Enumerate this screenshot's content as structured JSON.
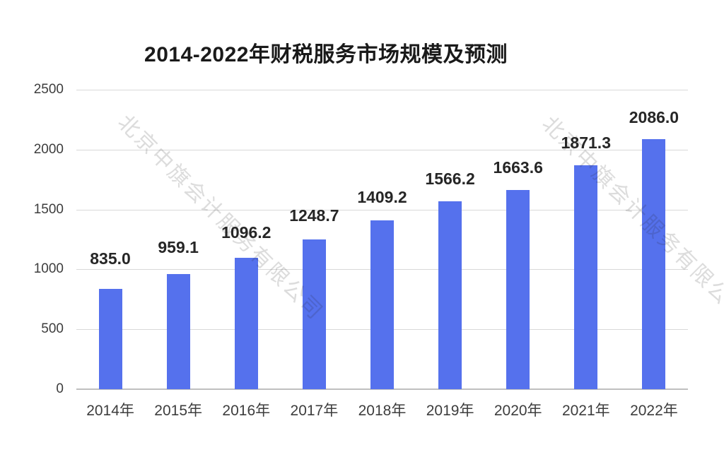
{
  "chart_data": {
    "type": "bar",
    "title": "2014-2022年财税服务市场规模及预测",
    "categories": [
      "2014年",
      "2015年",
      "2016年",
      "2017年",
      "2018年",
      "2019年",
      "2020年",
      "2021年",
      "2022年"
    ],
    "values": [
      835.0,
      959.1,
      1096.2,
      1248.7,
      1409.2,
      1566.2,
      1663.6,
      1871.3,
      2086.0
    ],
    "value_labels": [
      "835.0",
      "959.1",
      "1096.2",
      "1248.7",
      "1409.2",
      "1566.2",
      "1663.6",
      "1871.3",
      "2086.0"
    ],
    "xlabel": "",
    "ylabel": "",
    "ylim": [
      0,
      2500
    ],
    "y_ticks": [
      0,
      500,
      1000,
      1500,
      2000,
      2500
    ],
    "y_tick_labels": [
      "0",
      "500",
      "1000",
      "1500",
      "2000",
      "2500"
    ],
    "grid": "horizontal",
    "legend": "none",
    "bar_color": "#5571ed",
    "gridline_color": "#d9d9d9",
    "baseline_color": "#bfbfbf",
    "title_color": "#1a1a1a",
    "tick_label_color": "#3d3d3d",
    "value_label_color": "#262626"
  },
  "watermark": {
    "text": "北京中旗会计服务有限公司"
  }
}
